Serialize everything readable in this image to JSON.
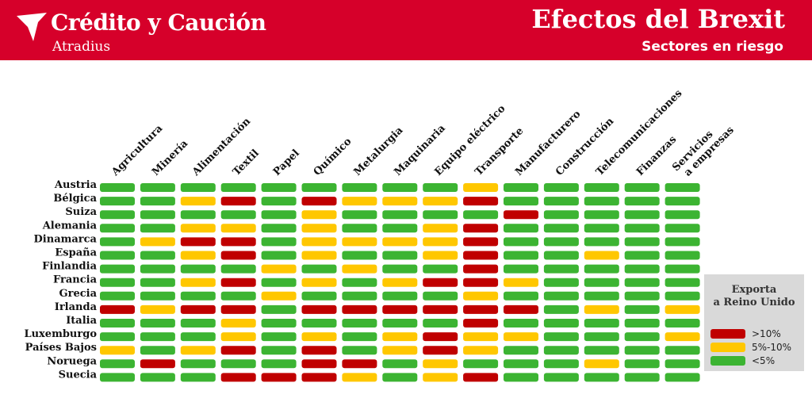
{
  "header": {
    "brand_name": "Crédito y Caución",
    "brand_sub": "Atradius",
    "title": "Efectos del Brexit",
    "subtitle": "Sectores en riesgo"
  },
  "colors": {
    "header_bg": "#d6002a",
    "high": "#c00000",
    "medium": "#ffc700",
    "low": "#3cb432",
    "legend_bg": "#d9d9d9"
  },
  "legend": {
    "title_line1": "Exporta",
    "title_line2": "a Reino Unido",
    "items": [
      {
        "key": "high",
        "label": ">10%"
      },
      {
        "key": "medium",
        "label": "5%-10%"
      },
      {
        "key": "low",
        "label": "<5%"
      }
    ]
  },
  "chart_data": {
    "type": "heatmap",
    "title": "Efectos del Brexit",
    "subtitle": "Sectores en riesgo",
    "columns": [
      "Agricultura",
      "Minería",
      "Alimentación",
      "Textil",
      "Papel",
      "Químico",
      "Metalurgia",
      "Maquinaria",
      "Equipo eléctrico",
      "Transporte",
      "Manufacturero",
      "Construcción",
      "Telecomunicaciones",
      "Finanzas",
      "Servicios a empresas"
    ],
    "rows": [
      "Austria",
      "Bélgica",
      "Suiza",
      "Alemania",
      "Dinamarca",
      "España",
      "Finlandia",
      "Francia",
      "Grecia",
      "Irlanda",
      "Italia",
      "Luxemburgo",
      "Países Bajos",
      "Noruega",
      "Suecia"
    ],
    "legend_title": "Exporta a Reino Unido",
    "categories": {
      "H": ">10%",
      "M": "5%-10%",
      "L": "<5%"
    },
    "values": [
      [
        "L",
        "L",
        "L",
        "L",
        "L",
        "L",
        "L",
        "L",
        "L",
        "M",
        "L",
        "L",
        "L",
        "L",
        "L"
      ],
      [
        "L",
        "L",
        "M",
        "H",
        "L",
        "H",
        "M",
        "M",
        "M",
        "H",
        "L",
        "L",
        "L",
        "L",
        "L"
      ],
      [
        "L",
        "L",
        "L",
        "L",
        "L",
        "M",
        "L",
        "L",
        "L",
        "L",
        "H",
        "L",
        "L",
        "L",
        "L"
      ],
      [
        "L",
        "L",
        "M",
        "M",
        "L",
        "M",
        "L",
        "L",
        "M",
        "H",
        "L",
        "L",
        "L",
        "L",
        "L"
      ],
      [
        "L",
        "M",
        "H",
        "H",
        "L",
        "M",
        "M",
        "M",
        "M",
        "H",
        "L",
        "L",
        "L",
        "L",
        "L"
      ],
      [
        "L",
        "L",
        "M",
        "H",
        "L",
        "M",
        "L",
        "L",
        "M",
        "H",
        "L",
        "L",
        "M",
        "L",
        "L"
      ],
      [
        "L",
        "L",
        "L",
        "L",
        "M",
        "L",
        "M",
        "L",
        "L",
        "H",
        "L",
        "L",
        "L",
        "L",
        "L"
      ],
      [
        "L",
        "L",
        "M",
        "H",
        "L",
        "M",
        "L",
        "M",
        "H",
        "H",
        "M",
        "L",
        "L",
        "L",
        "L"
      ],
      [
        "L",
        "L",
        "L",
        "L",
        "M",
        "L",
        "L",
        "L",
        "L",
        "M",
        "L",
        "L",
        "L",
        "L",
        "L"
      ],
      [
        "H",
        "M",
        "H",
        "H",
        "L",
        "H",
        "H",
        "H",
        "H",
        "H",
        "H",
        "L",
        "M",
        "L",
        "M"
      ],
      [
        "L",
        "L",
        "L",
        "M",
        "L",
        "L",
        "L",
        "L",
        "L",
        "H",
        "L",
        "L",
        "L",
        "L",
        "L"
      ],
      [
        "L",
        "L",
        "L",
        "M",
        "L",
        "M",
        "L",
        "M",
        "H",
        "M",
        "M",
        "L",
        "L",
        "L",
        "M"
      ],
      [
        "M",
        "L",
        "M",
        "H",
        "L",
        "H",
        "L",
        "M",
        "H",
        "M",
        "L",
        "L",
        "L",
        "L",
        "L"
      ],
      [
        "L",
        "H",
        "L",
        "L",
        "L",
        "H",
        "H",
        "L",
        "M",
        "L",
        "L",
        "L",
        "M",
        "L",
        "L"
      ],
      [
        "L",
        "L",
        "L",
        "H",
        "H",
        "H",
        "M",
        "L",
        "M",
        "H",
        "L",
        "L",
        "L",
        "L",
        "L"
      ]
    ]
  }
}
